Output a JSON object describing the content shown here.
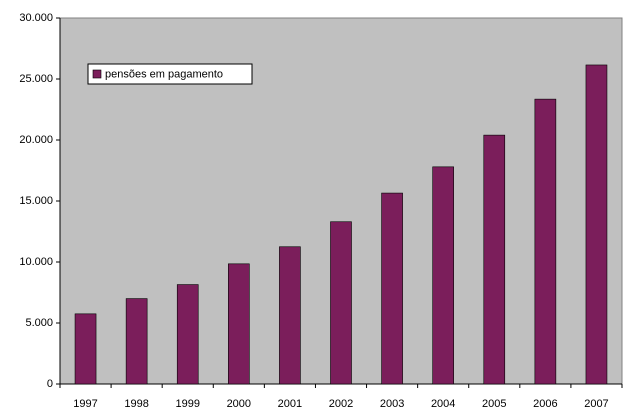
{
  "chart_data": {
    "type": "bar",
    "categories": [
      "1997",
      "1998",
      "1999",
      "2000",
      "2001",
      "2002",
      "2003",
      "2004",
      "2005",
      "2006",
      "2007"
    ],
    "series": [
      {
        "name": "pensões em pagamento",
        "color": "#7b1e5b",
        "values": [
          5750,
          7000,
          8150,
          9850,
          11250,
          13300,
          15650,
          17800,
          20400,
          23350,
          26150
        ]
      }
    ],
    "ylim": [
      0,
      30000
    ],
    "yticks": [
      0,
      {
        "value": 5000,
        "label": "5.000"
      },
      {
        "value": 10000,
        "label": "10.000"
      },
      {
        "value": 15000,
        "label": "15.000"
      },
      {
        "value": 20000,
        "label": "20.000"
      },
      {
        "value": 25000,
        "label": "25.000"
      },
      {
        "value": 30000,
        "label": "30.000"
      }
    ],
    "legend": "upper left",
    "plot_background": "#c0c0c0"
  }
}
